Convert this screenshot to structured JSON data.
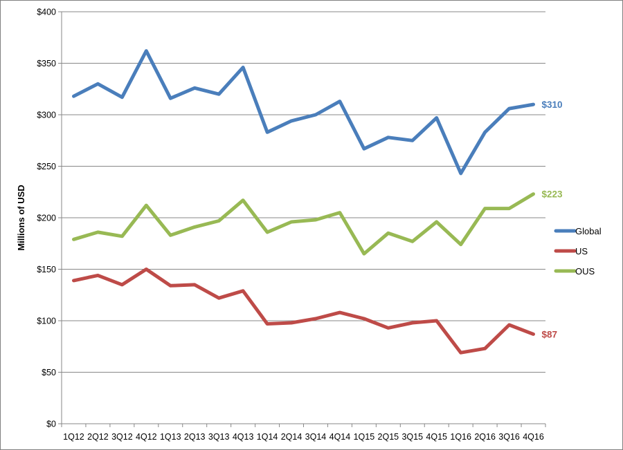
{
  "chart_data": {
    "type": "line",
    "title": "",
    "xlabel": "",
    "ylabel": "Millions of USD",
    "ylim": [
      0,
      400
    ],
    "y_ticks": [
      "$0",
      "$50",
      "$100",
      "$150",
      "$200",
      "$250",
      "$300",
      "$350",
      "$400"
    ],
    "y_tick_values": [
      0,
      50,
      100,
      150,
      200,
      250,
      300,
      350,
      400
    ],
    "grid": "horizontal",
    "legend_position": "right",
    "categories": [
      "1Q12",
      "2Q12",
      "3Q12",
      "4Q12",
      "1Q13",
      "2Q13",
      "3Q13",
      "4Q13",
      "1Q14",
      "2Q14",
      "3Q14",
      "4Q14",
      "1Q15",
      "2Q15",
      "3Q15",
      "4Q15",
      "1Q16",
      "2Q16",
      "3Q16",
      "4Q16"
    ],
    "series": [
      {
        "name": "Global",
        "color": "#4a7ebb",
        "values": [
          318,
          330,
          317,
          362,
          316,
          326,
          320,
          346,
          283,
          294,
          300,
          313,
          267,
          278,
          275,
          297,
          243,
          283,
          306,
          310
        ],
        "end_label": "$310"
      },
      {
        "name": "US",
        "color": "#be4b48",
        "values": [
          139,
          144,
          135,
          150,
          134,
          135,
          122,
          129,
          97,
          98,
          102,
          108,
          102,
          93,
          98,
          100,
          69,
          73,
          96,
          87
        ],
        "end_label": "$87"
      },
      {
        "name": "OUS",
        "color": "#98b954",
        "values": [
          179,
          186,
          182,
          212,
          183,
          191,
          197,
          217,
          186,
          196,
          198,
          205,
          165,
          185,
          177,
          196,
          174,
          209,
          209,
          223
        ],
        "end_label": "$223"
      }
    ]
  }
}
